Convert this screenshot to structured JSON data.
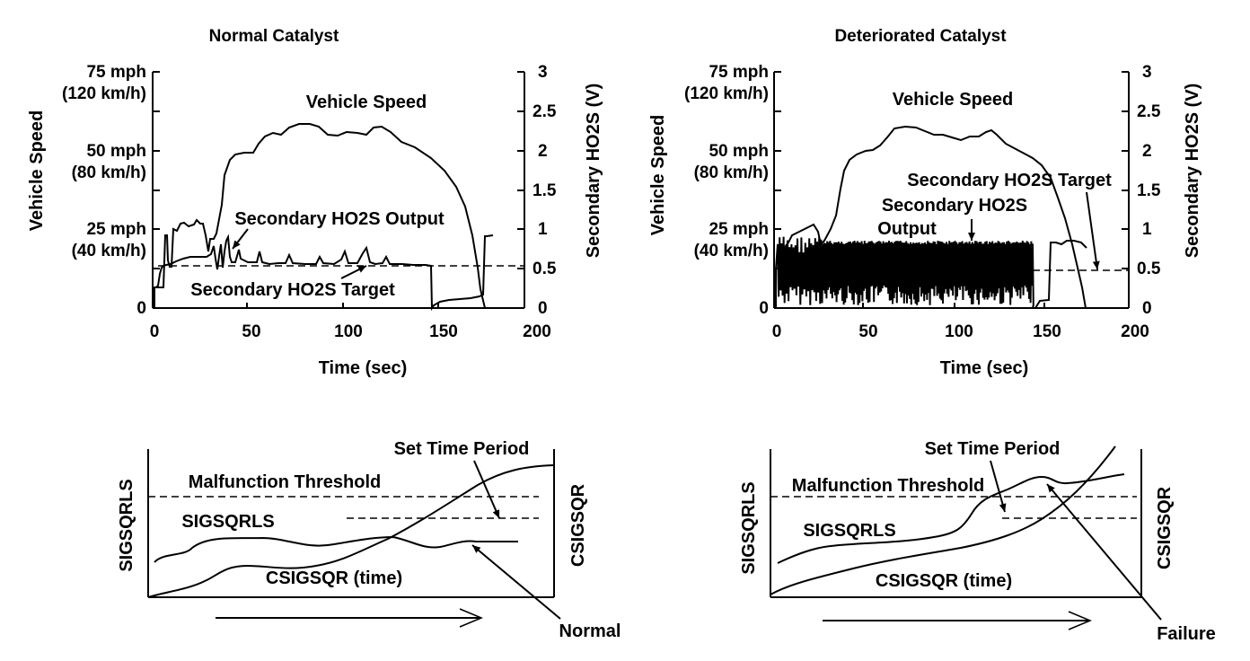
{
  "panels": {
    "normal": {
      "title": "Normal Catalyst",
      "left_axis_label": "Vehicle Speed",
      "right_axis_label": "Secondary HO2S (V)",
      "x_axis_label": "Time (sec)",
      "speed_label": "Vehicle Speed",
      "output_label": "Secondary HO2S Output",
      "target_label": "Secondary HO2S Target"
    },
    "deteriorated": {
      "title": "Deteriorated Catalyst",
      "left_axis_label": "Vehicle Speed",
      "right_axis_label": "Secondary HO2S (V)",
      "x_axis_label": "Time (sec)",
      "speed_label": "Vehicle Speed",
      "target_label": "Secondary HO2S Target",
      "output_label_line1": "Secondary HO2S",
      "output_label_line2": "Output"
    }
  },
  "speed_ticks": [
    {
      "l1": "75 mph",
      "l2": "(120 km/h)"
    },
    {
      "l1": "50 mph",
      "l2": "(80 km/h)"
    },
    {
      "l1": "25 mph",
      "l2": "(40 km/h)"
    },
    {
      "l1": "0",
      "l2": ""
    }
  ],
  "voltage_ticks": [
    "3",
    "2.5",
    "2",
    "1.5",
    "1",
    "0.5",
    "0"
  ],
  "time_ticks": [
    "0",
    "50",
    "100",
    "150",
    "200"
  ],
  "diagrams": {
    "normal": {
      "left_axis_label": "SIGSQRLS",
      "right_axis_label": "CSIGSQR",
      "threshold_label": "Malfunction Threshold",
      "set_time_label": "Set Time Period",
      "sigsqrls_label": "SIGSQRLS",
      "csigsqr_label": "CSIGSQR (time)",
      "result_label": "Normal"
    },
    "failure": {
      "left_axis_label": "SIGSQRLS",
      "right_axis_label": "CSIGSQR",
      "threshold_label": "Malfunction Threshold",
      "set_time_label": "Set Time Period",
      "sigsqrls_label": "SIGSQRLS",
      "csigsqr_label": "CSIGSQR (time)",
      "result_label": "Failure"
    }
  }
}
